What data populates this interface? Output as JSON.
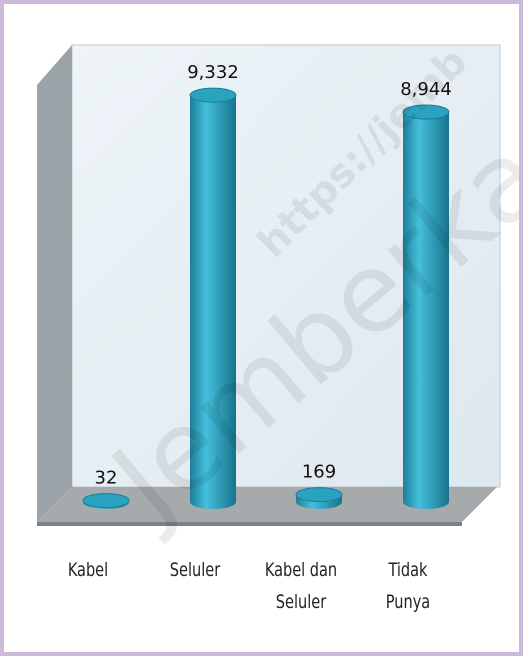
{
  "chart_data": {
    "type": "bar3d",
    "categories": [
      "Kabel",
      "Seluler",
      "Kabel dan\nSeluler",
      "Tidak\nPunya"
    ],
    "values": [
      32,
      9332,
      169,
      8944
    ],
    "value_labels": [
      "32",
      "9,332",
      "169",
      "8,944"
    ],
    "color": "#2aa3c0",
    "watermark": [
      "https://jemb",
      "Jemberka"
    ]
  }
}
